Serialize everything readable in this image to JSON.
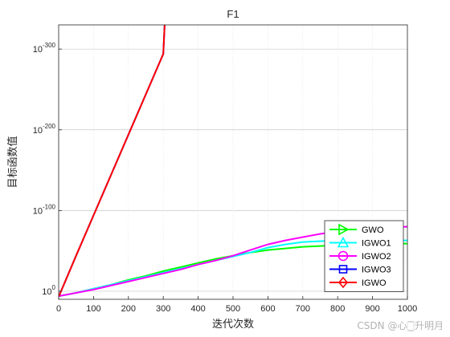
{
  "watermark": "CSDN @心🀆升明月",
  "chart_data": {
    "type": "line",
    "title": "F1",
    "xlabel": "迭代次数",
    "ylabel": "目标函数值",
    "yscale": "log",
    "xlim": [
      0,
      1000
    ],
    "ylim_exponent": [
      -330,
      10
    ],
    "grid": true,
    "legend_position": "bottom-right",
    "x_ticks": [
      0,
      100,
      200,
      300,
      400,
      500,
      600,
      700,
      800,
      900,
      1000
    ],
    "y_ticks_exponent": [
      0,
      -100,
      -200,
      -300
    ],
    "y_tick_labels": [
      {
        "base": "10",
        "exp": "0"
      },
      {
        "base": "10",
        "exp": "-100"
      },
      {
        "base": "10",
        "exp": "-200"
      },
      {
        "base": "10",
        "exp": "-300"
      }
    ],
    "marker_every": 50,
    "series": [
      {
        "name": "GWO",
        "color": "#00ff00",
        "marker": "triangle-right",
        "x": [
          1,
          50,
          100,
          150,
          200,
          250,
          300,
          350,
          400,
          450,
          500,
          550,
          600,
          650,
          700,
          750,
          800,
          850,
          900,
          950,
          1000
        ],
        "y_log10": [
          6,
          2,
          -3,
          -8,
          -14,
          -19,
          -25,
          -30,
          -35,
          -40,
          -44,
          -48,
          -51,
          -53,
          -55,
          -56,
          -57,
          -58,
          -58,
          -59,
          -59
        ]
      },
      {
        "name": "IGWO1",
        "color": "#00ffff",
        "marker": "triangle-up",
        "x": [
          1,
          50,
          100,
          150,
          200,
          250,
          300,
          350,
          400,
          450,
          500,
          550,
          600,
          650,
          700,
          750,
          800,
          850,
          900,
          950,
          1000
        ],
        "y_log10": [
          6,
          2,
          -3,
          -8,
          -13,
          -18,
          -23,
          -28,
          -33,
          -38,
          -43,
          -48,
          -54,
          -58,
          -61,
          -62,
          -63,
          -63,
          -63,
          -63,
          -63
        ]
      },
      {
        "name": "IGWO2",
        "color": "#ff00ff",
        "marker": "circle",
        "x": [
          1,
          50,
          100,
          150,
          200,
          250,
          300,
          350,
          400,
          450,
          500,
          550,
          600,
          650,
          700,
          750,
          800,
          850,
          900,
          950,
          1000
        ],
        "y_log10": [
          6,
          2,
          -2,
          -7,
          -12,
          -17,
          -22,
          -27,
          -33,
          -38,
          -44,
          -51,
          -58,
          -63,
          -67,
          -71,
          -74,
          -76,
          -78,
          -79,
          -80
        ]
      },
      {
        "name": "IGWO3",
        "color": "#0000ff",
        "marker": "square",
        "x": [
          1,
          50,
          100,
          150,
          200,
          250,
          300,
          304
        ],
        "y_log10": [
          6,
          -44,
          -94,
          -144,
          -194,
          -244,
          -294,
          -330
        ]
      },
      {
        "name": "IGWO",
        "color": "#ff0000",
        "marker": "diamond",
        "x": [
          1,
          50,
          100,
          150,
          200,
          250,
          300,
          304
        ],
        "y_log10": [
          6,
          -44,
          -94,
          -144,
          -194,
          -244,
          -294,
          -330
        ]
      }
    ]
  }
}
